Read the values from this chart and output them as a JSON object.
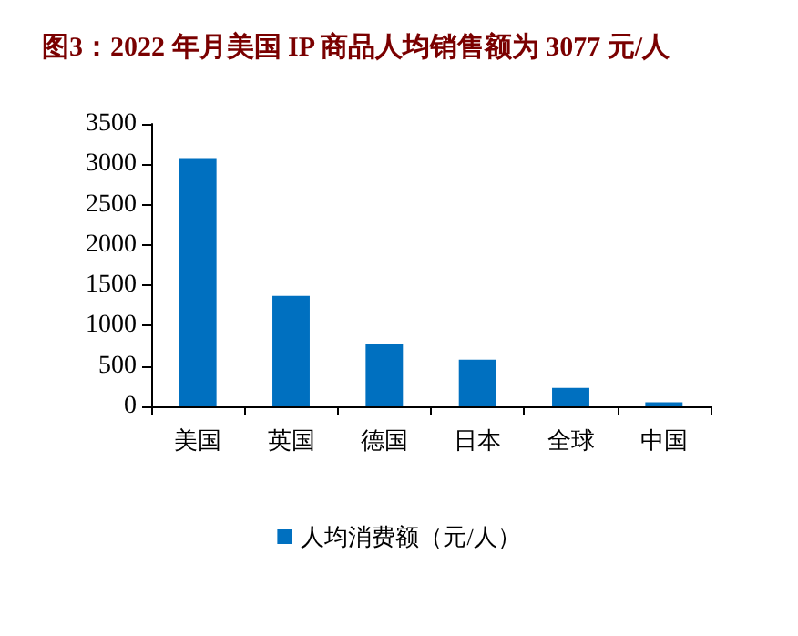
{
  "chart_data": {
    "type": "bar",
    "title": "图3：2022 年月美国 IP 商品人均销售额为 3077 元/人",
    "categories": [
      "美国",
      "英国",
      "德国",
      "日本",
      "全球",
      "中国"
    ],
    "series": [
      {
        "name": "人均消费额（元/人）",
        "color": "#0070c0",
        "values": [
          3077,
          1370,
          770,
          580,
          230,
          50
        ]
      }
    ],
    "ylim": [
      0,
      3500
    ],
    "yticks": [
      0,
      500,
      1000,
      1500,
      2000,
      2500,
      3000,
      3500
    ],
    "grid": false,
    "legend": "bottom"
  }
}
